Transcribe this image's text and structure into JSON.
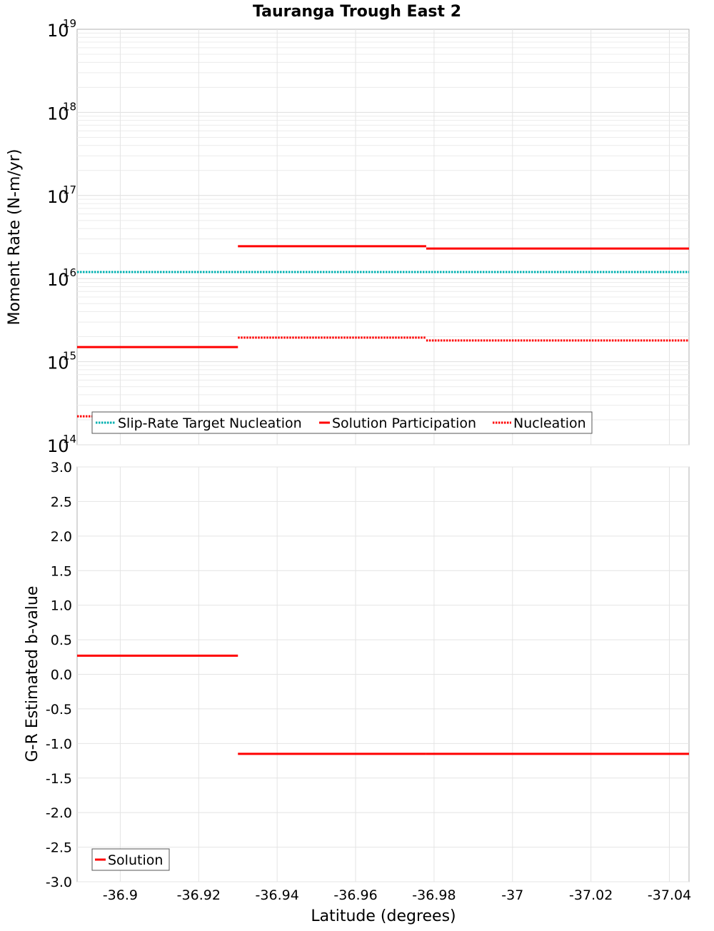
{
  "title": "Tauranga Trough East 2",
  "chart_data": [
    {
      "type": "line",
      "scale": "log",
      "ylabel": "Moment Rate (N-m/yr)",
      "xlabel": "",
      "xlim": [
        -36.889,
        -37.045
      ],
      "ylim_exponents": [
        14,
        19
      ],
      "y_tick_labels": [
        {
          "base": "10",
          "exp": "14"
        },
        {
          "base": "10",
          "exp": "15"
        },
        {
          "base": "10",
          "exp": "16"
        },
        {
          "base": "10",
          "exp": "17"
        },
        {
          "base": "10",
          "exp": "18"
        },
        {
          "base": "10",
          "exp": "19"
        }
      ],
      "grid": true,
      "series": [
        {
          "name": "Slip-Rate Target Nucleation",
          "style": "dotted",
          "color": "#00b0b0",
          "segments": [
            {
              "x0": -36.889,
              "x1": -37.045,
              "y": 1.2e+16
            }
          ]
        },
        {
          "name": "Solution Participation",
          "style": "solid",
          "color": "#ff0000",
          "segments": [
            {
              "x0": -36.889,
              "x1": -36.93,
              "y": 1500000000000000.0
            },
            {
              "x0": -36.93,
              "x1": -36.978,
              "y": 2.45e+16
            },
            {
              "x0": -36.978,
              "x1": -37.045,
              "y": 2.3e+16
            }
          ]
        },
        {
          "name": "Nucleation",
          "style": "dotted",
          "color": "#ff0000",
          "segments": [
            {
              "x0": -36.889,
              "x1": -36.93,
              "y": 220000000000000.0
            },
            {
              "x0": -36.93,
              "x1": -36.978,
              "y": 1950000000000000.0
            },
            {
              "x0": -36.978,
              "x1": -37.045,
              "y": 1800000000000000.0
            }
          ]
        }
      ],
      "legend": [
        "Slip-Rate Target Nucleation",
        "Solution Participation",
        "Nucleation"
      ],
      "legend_position": "bottom-left"
    },
    {
      "type": "line",
      "scale": "linear",
      "ylabel": "G-R Estimated b-value",
      "xlabel": "Latitude (degrees)",
      "xlim": [
        -36.889,
        -37.045
      ],
      "ylim": [
        -3.0,
        3.0
      ],
      "y_ticks": [
        "3.0",
        "2.5",
        "2.0",
        "1.5",
        "1.0",
        "0.5",
        "0.0",
        "-0.5",
        "-1.0",
        "-1.5",
        "-2.0",
        "-2.5",
        "-3.0"
      ],
      "x_ticks": [
        "-36.9",
        "-36.92",
        "-36.94",
        "-36.96",
        "-36.98",
        "-37",
        "-37.02",
        "-37.04"
      ],
      "grid": true,
      "series": [
        {
          "name": "Solution",
          "style": "solid",
          "color": "#ff0000",
          "segments": [
            {
              "x0": -36.889,
              "x1": -36.93,
              "y": 0.27
            },
            {
              "x0": -36.93,
              "x1": -36.978,
              "y": -1.15
            },
            {
              "x0": -36.978,
              "x1": -37.045,
              "y": -1.15
            }
          ]
        }
      ],
      "legend": [
        "Solution"
      ],
      "legend_position": "bottom-left"
    }
  ]
}
